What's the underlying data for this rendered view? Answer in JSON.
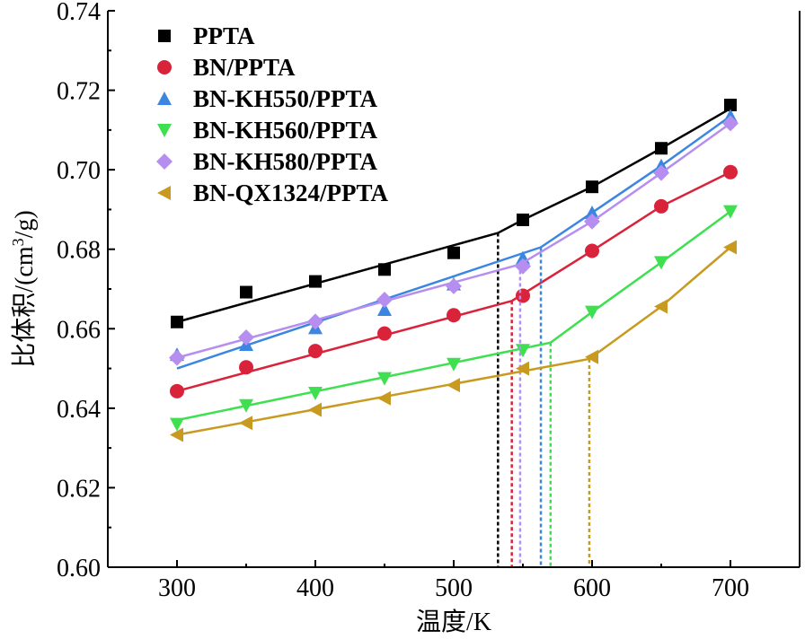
{
  "chart_data": {
    "type": "scatter",
    "xlabel": "温度/K",
    "ylabel": {
      "prefix": "比体积/(cm",
      "sup": "3",
      "suffix": "/g)"
    },
    "xlim": [
      250,
      750
    ],
    "ylim": [
      0.6,
      0.74
    ],
    "xticks": [
      "300",
      "400",
      "500",
      "600",
      "700"
    ],
    "xtick_values": [
      300,
      400,
      500,
      600,
      700
    ],
    "yticks": [
      "0.60",
      "0.62",
      "0.64",
      "0.66",
      "0.68",
      "0.70",
      "0.72",
      "0.74"
    ],
    "ytick_values": [
      0.6,
      0.62,
      0.64,
      0.66,
      0.68,
      0.7,
      0.72,
      0.74
    ],
    "legend_position": "top-left",
    "x": [
      300,
      350,
      400,
      450,
      500,
      550,
      600,
      650,
      700
    ],
    "series": [
      {
        "name": "PPTA",
        "marker": "square",
        "color": "#000000",
        "values": [
          0.6617,
          0.6692,
          0.6719,
          0.6749,
          0.6791,
          0.6874,
          0.6957,
          0.7054,
          0.7163
        ],
        "fit_low": [
          [
            300,
            0.6617
          ],
          [
            532,
            0.6841
          ]
        ],
        "fit_high": [
          [
            532,
            0.6841
          ],
          [
            550,
            0.6874
          ],
          [
            600,
            0.6957
          ],
          [
            650,
            0.7054
          ],
          [
            700,
            0.7154
          ]
        ],
        "tg": 532
      },
      {
        "name": "BN/PPTA",
        "marker": "circle",
        "color": "#d9233a",
        "values": [
          0.6443,
          0.6503,
          0.6544,
          0.6588,
          0.6634,
          0.6683,
          0.6796,
          0.6908,
          0.6994
        ],
        "fit_low": [
          [
            300,
            0.6443
          ],
          [
            542,
            0.667
          ]
        ],
        "fit_high": [
          [
            542,
            0.667
          ],
          [
            600,
            0.6796
          ],
          [
            650,
            0.6908
          ],
          [
            700,
            0.6994
          ]
        ],
        "tg": 542
      },
      {
        "name": "BN-KH550/PPTA",
        "marker": "triangle-up",
        "color": "#3b86e0",
        "values": [
          0.6535,
          0.656,
          0.6602,
          0.6648,
          0.6712,
          0.6778,
          0.6892,
          0.701,
          0.7135
        ],
        "fit_low": [
          [
            300,
            0.65
          ],
          [
            563,
            0.6805
          ]
        ],
        "fit_high": [
          [
            563,
            0.6805
          ],
          [
            600,
            0.6892
          ],
          [
            650,
            0.701
          ],
          [
            700,
            0.7135
          ]
        ],
        "tg": 563
      },
      {
        "name": "BN-KH560/PPTA",
        "marker": "triangle-down",
        "color": "#3ee050",
        "values": [
          0.636,
          0.6407,
          0.6438,
          0.6475,
          0.6511,
          0.6546,
          0.6642,
          0.6767,
          0.6895
        ],
        "fit_low": [
          [
            300,
            0.637
          ],
          [
            570,
            0.6565
          ]
        ],
        "fit_high": [
          [
            570,
            0.6565
          ],
          [
            600,
            0.6642
          ],
          [
            650,
            0.6767
          ],
          [
            700,
            0.6895
          ]
        ],
        "tg": 570
      },
      {
        "name": "BN-KH580/PPTA",
        "marker": "diamond",
        "color": "#b58ef0",
        "values": [
          0.6527,
          0.6578,
          0.6618,
          0.6673,
          0.6707,
          0.6757,
          0.687,
          0.6992,
          0.7117
        ],
        "fit_low": [
          [
            300,
            0.6527
          ],
          [
            548,
            0.6762
          ]
        ],
        "fit_high": [
          [
            548,
            0.6762
          ],
          [
            600,
            0.687
          ],
          [
            650,
            0.6992
          ],
          [
            700,
            0.7117
          ]
        ],
        "tg": 548
      },
      {
        "name": "BN-QX1324/PPTA",
        "marker": "triangle-left",
        "color": "#c89a20",
        "values": [
          0.6333,
          0.6363,
          0.6396,
          0.6425,
          0.6458,
          0.65,
          0.6529,
          0.6656,
          0.6805
        ],
        "fit_low": [
          [
            300,
            0.6333
          ],
          [
            598,
            0.6524
          ]
        ],
        "fit_high": [
          [
            598,
            0.6524
          ],
          [
            650,
            0.6656
          ],
          [
            700,
            0.6805
          ]
        ],
        "tg": 598
      }
    ]
  }
}
